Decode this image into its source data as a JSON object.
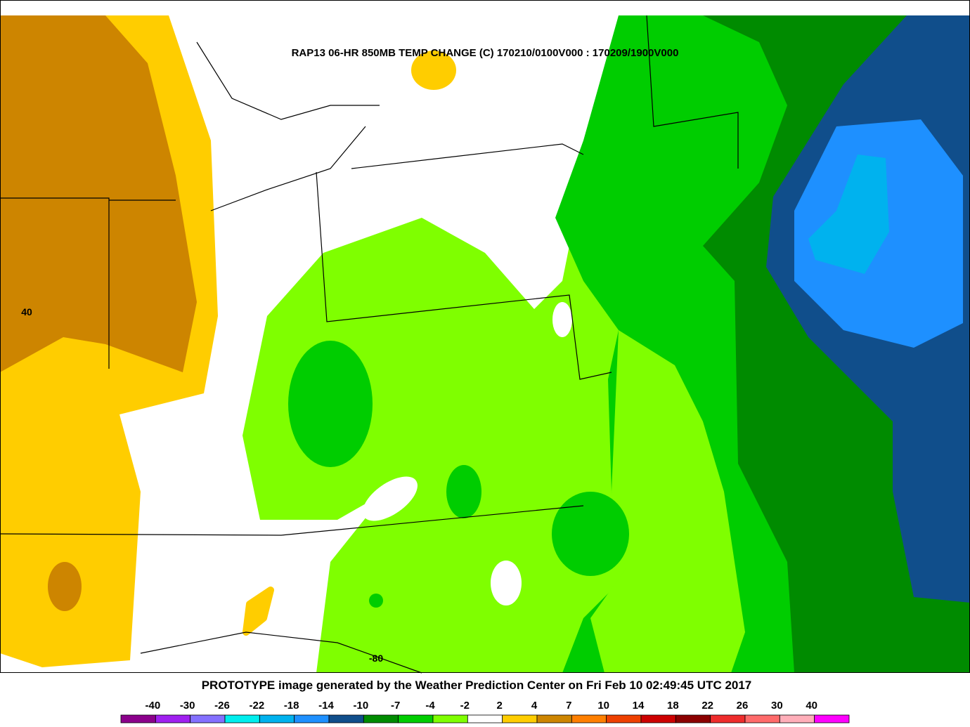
{
  "map": {
    "title": "RAP13 06-HR 850MB TEMP CHANGE (C) 170210/0100V000 : 170209/1900V000",
    "footer": "PROTOTYPE image generated by the Weather Prediction Center on Fri Feb 10 02:49:45 UTC 2017",
    "grid_labels": {
      "latitude": "40",
      "longitude": "-80"
    },
    "legend": {
      "ticks": [
        -40,
        -30,
        -26,
        -22,
        -18,
        -14,
        -10,
        -7,
        -4,
        -2,
        2,
        4,
        7,
        10,
        14,
        18,
        22,
        26,
        30,
        40
      ],
      "colors": [
        "#8b008b",
        "#a020f0",
        "#8470ff",
        "#00eeee",
        "#00b2ee",
        "#1e90ff",
        "#104e8b",
        "#008b00",
        "#00cd00",
        "#7fff00",
        "#ffffff",
        "#ffcd00",
        "#cd8500",
        "#ff7f00",
        "#ee4000",
        "#cd0000",
        "#8b0000",
        "#ee2c2c",
        "#ff6a6a",
        "#ffaeb9",
        "#ff00ff"
      ]
    }
  }
}
